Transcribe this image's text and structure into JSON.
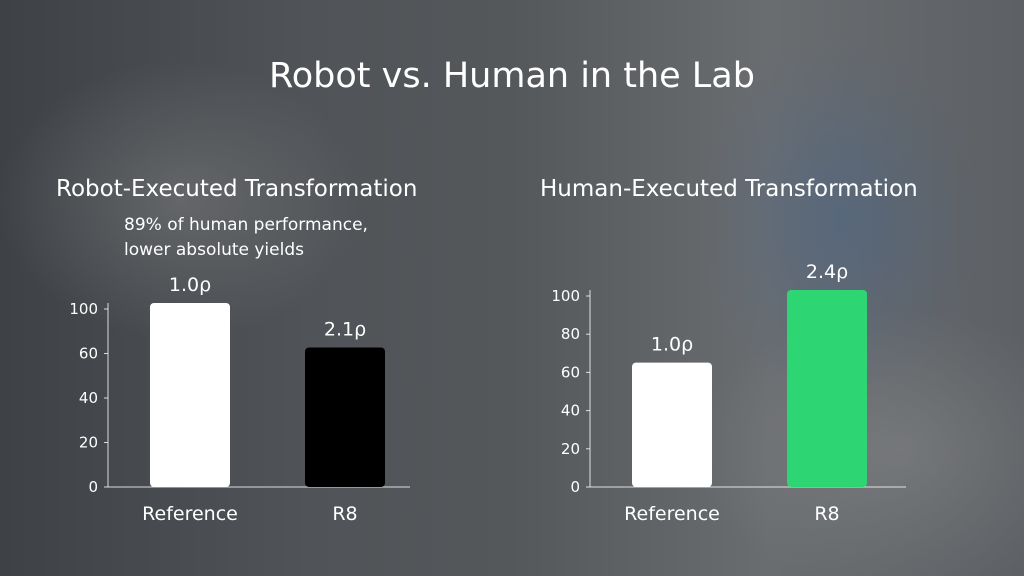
{
  "title": "Robot vs. Human in the Lab",
  "chart_data": [
    {
      "type": "bar",
      "title": "Robot-Executed Transformation",
      "annotation_lines": [
        "89% of human performance,",
        "lower absolute yields"
      ],
      "categories": [
        "Reference",
        "R8"
      ],
      "values": [
        100,
        60
      ],
      "data_labels": [
        "1.0ρ",
        "2.1ρ"
      ],
      "colors": [
        "#ffffff",
        "#000000"
      ],
      "yticks": [
        0,
        20,
        40,
        60,
        100
      ],
      "ylim": [
        0,
        100
      ],
      "xlabel": "",
      "ylabel": "",
      "grid": false
    },
    {
      "type": "bar",
      "title": "Human-Executed Transformation",
      "categories": [
        "Reference",
        "R8"
      ],
      "values": [
        62,
        100
      ],
      "data_labels": [
        "1.0ρ",
        "2.4ρ"
      ],
      "colors": [
        "#ffffff",
        "#2ed573"
      ],
      "yticks": [
        0,
        20,
        40,
        60,
        80,
        100
      ],
      "ylim": [
        0,
        100
      ],
      "xlabel": "",
      "ylabel": "",
      "grid": false
    }
  ]
}
